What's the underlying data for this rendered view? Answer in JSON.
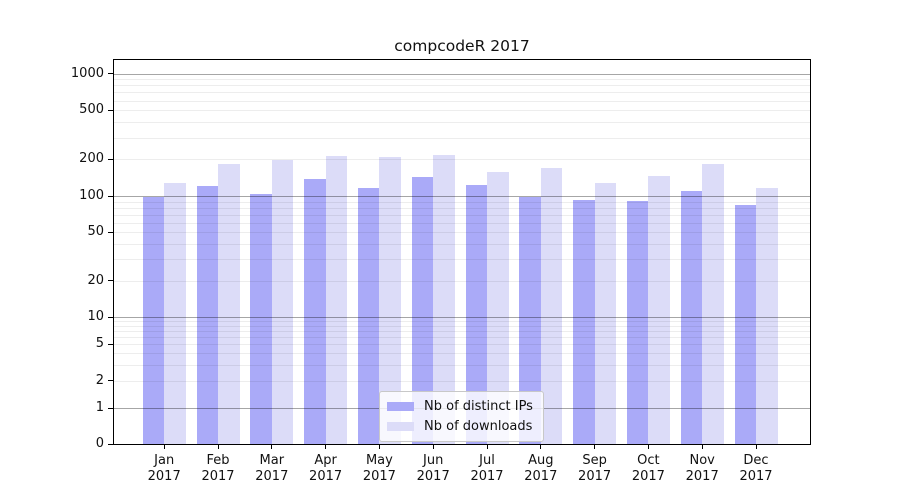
{
  "title": "compcodeR 2017",
  "legend": {
    "items": [
      {
        "label": "Nb of distinct IPs",
        "color": "#aaaaf8"
      },
      {
        "label": "Nb of downloads",
        "color": "#dcdcf8"
      }
    ]
  },
  "y_axis": {
    "tick_labels": [
      "0",
      "1",
      "2",
      "5",
      "10",
      "20",
      "50",
      "100",
      "200",
      "500",
      "1000"
    ]
  },
  "x_axis": {
    "months": [
      "Jan",
      "Feb",
      "Mar",
      "Apr",
      "May",
      "Jun",
      "Jul",
      "Aug",
      "Sep",
      "Oct",
      "Nov",
      "Dec"
    ],
    "year": "2017"
  },
  "chart_data": {
    "type": "bar",
    "title": "compcodeR 2017",
    "categories": [
      "Jan 2017",
      "Feb 2017",
      "Mar 2017",
      "Apr 2017",
      "May 2017",
      "Jun 2017",
      "Jul 2017",
      "Aug 2017",
      "Sep 2017",
      "Oct 2017",
      "Nov 2017",
      "Dec 2017"
    ],
    "series": [
      {
        "name": "Nb of distinct IPs",
        "color": "#aaaaf8",
        "values": [
          99,
          120,
          103,
          138,
          117,
          142,
          123,
          98,
          93,
          91,
          109,
          85
        ]
      },
      {
        "name": "Nb of downloads",
        "color": "#dcdcf8",
        "values": [
          128,
          181,
          197,
          214,
          207,
          218,
          158,
          170,
          127,
          145,
          182,
          117
        ]
      }
    ],
    "yscale": "symlog",
    "yticks": [
      0,
      1,
      2,
      5,
      10,
      20,
      50,
      100,
      200,
      500,
      1000
    ],
    "ylim": [
      0,
      1300
    ],
    "grid": "both",
    "legend_position": "lower center"
  }
}
